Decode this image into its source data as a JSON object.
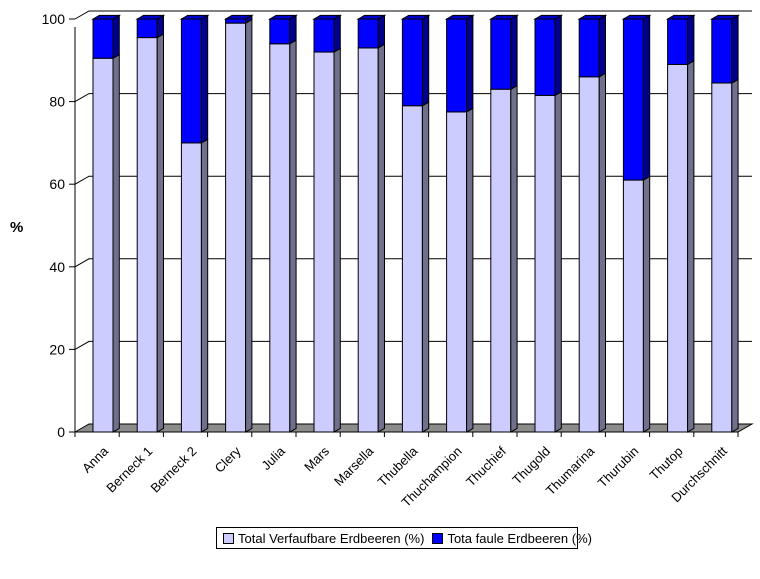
{
  "chart_data": {
    "type": "bar",
    "stacked": true,
    "categories": [
      "Anna",
      "Berneck 1",
      "Berneck 2",
      "Clery",
      "Julia",
      "Mars",
      "Marsella",
      "Thubella",
      "Thuchampion",
      "Thuchief",
      "Thugold",
      "Thumarina",
      "Thurubin",
      "Thutop",
      "Durchschnitt"
    ],
    "series": [
      {
        "name": "Total Verfaufbare Erdbeeren (%)",
        "color": "#CCCCFF",
        "values": [
          90.5,
          95.5,
          70,
          99,
          94,
          92,
          93,
          79,
          77.5,
          83,
          81.5,
          86,
          61,
          89,
          84.5
        ]
      },
      {
        "name": "Tota faule Erdbeeren (%)",
        "color": "#0000FF",
        "values": [
          9.5,
          4.5,
          30,
          1,
          6,
          8,
          7,
          21,
          22.5,
          17,
          18.5,
          14,
          39,
          11,
          15.5
        ]
      }
    ],
    "ylabel": "%",
    "xlabel": "",
    "ylim": [
      0,
      100
    ],
    "yticks": [
      0,
      20,
      40,
      60,
      80,
      100
    ],
    "grid": true,
    "legend": "bottom"
  }
}
